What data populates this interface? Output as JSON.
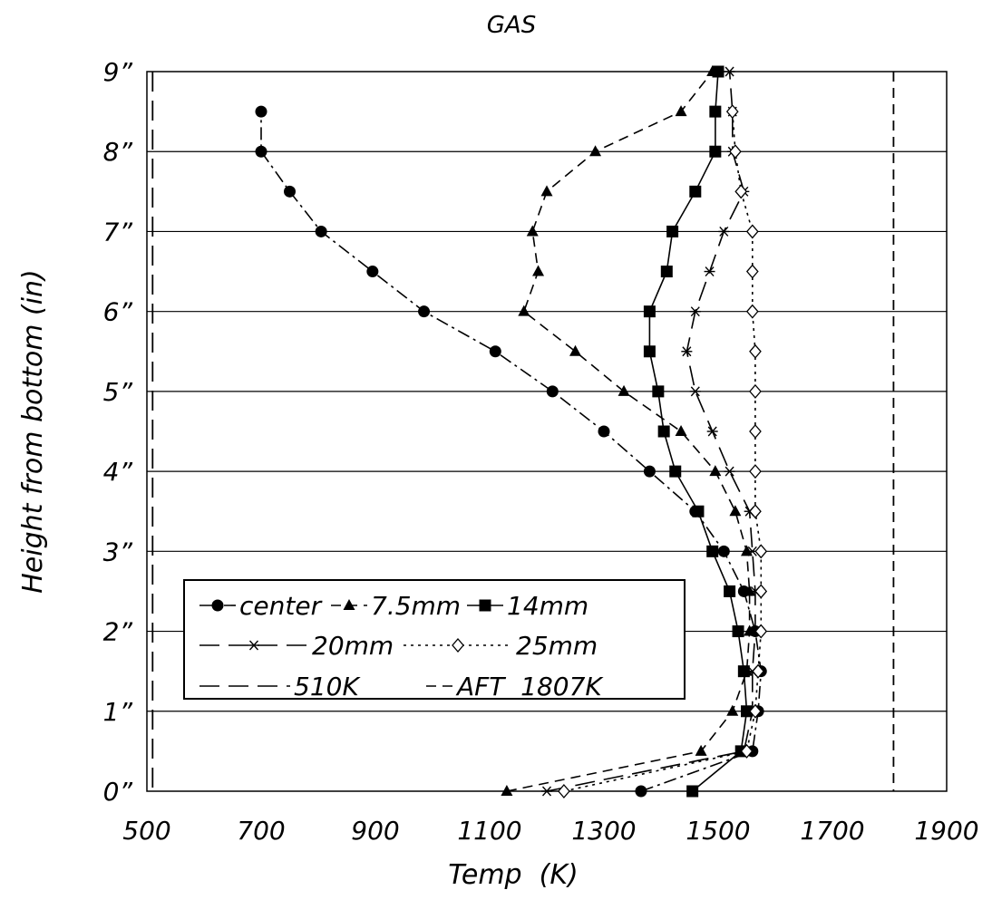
{
  "chart_data": {
    "type": "line",
    "title": "GAS",
    "xlabel": "Temp  (K)",
    "ylabel": "Height from bottom (in)",
    "xlim": [
      500,
      1900
    ],
    "ylim": [
      0,
      9
    ],
    "xticks": [
      500,
      700,
      900,
      1100,
      1300,
      1500,
      1700,
      1900
    ],
    "xtick_labels": [
      "500",
      "700",
      "900",
      "1100",
      "1300",
      "1500",
      "1700",
      "1900"
    ],
    "yticks": [
      0,
      1,
      2,
      3,
      4,
      5,
      6,
      7,
      8,
      9
    ],
    "ytick_labels": [
      "0”",
      "1”",
      "2”",
      "3”",
      "4”",
      "5”",
      "6”",
      "7”",
      "8”",
      "9”"
    ],
    "grid": "horizontal",
    "legend_placement": "lower-left",
    "series": [
      {
        "name": "center",
        "marker": "circle",
        "line": "dashdot",
        "points": [
          [
            1365,
            0
          ],
          [
            1560,
            0.5
          ],
          [
            1570,
            1
          ],
          [
            1575,
            1.5
          ],
          [
            1565,
            2
          ],
          [
            1545,
            2.5
          ],
          [
            1510,
            3
          ],
          [
            1460,
            3.5
          ],
          [
            1380,
            4
          ],
          [
            1300,
            4.5
          ],
          [
            1210,
            5
          ],
          [
            1110,
            5.5
          ],
          [
            985,
            6
          ],
          [
            895,
            6.5
          ],
          [
            805,
            7
          ],
          [
            750,
            7.5
          ],
          [
            700,
            8
          ],
          [
            700,
            8.5
          ]
        ]
      },
      {
        "name": "7.5mm",
        "marker": "triangle",
        "line": "dashed",
        "points": [
          [
            1130,
            0
          ],
          [
            1470,
            0.5
          ],
          [
            1525,
            1
          ],
          [
            1550,
            1.5
          ],
          [
            1555,
            2
          ],
          [
            1555,
            2.5
          ],
          [
            1550,
            3
          ],
          [
            1530,
            3.5
          ],
          [
            1495,
            4
          ],
          [
            1435,
            4.5
          ],
          [
            1335,
            5
          ],
          [
            1250,
            5.5
          ],
          [
            1160,
            6
          ],
          [
            1185,
            6.5
          ],
          [
            1175,
            7
          ],
          [
            1200,
            7.5
          ],
          [
            1285,
            8
          ],
          [
            1435,
            8.5
          ],
          [
            1490,
            9
          ]
        ]
      },
      {
        "name": "14mm",
        "marker": "square",
        "line": "solid",
        "points": [
          [
            1455,
            0
          ],
          [
            1540,
            0.5
          ],
          [
            1550,
            1
          ],
          [
            1545,
            1.5
          ],
          [
            1535,
            2
          ],
          [
            1520,
            2.5
          ],
          [
            1490,
            3
          ],
          [
            1465,
            3.5
          ],
          [
            1425,
            4
          ],
          [
            1405,
            4.5
          ],
          [
            1395,
            5
          ],
          [
            1380,
            5.5
          ],
          [
            1380,
            6
          ],
          [
            1410,
            6.5
          ],
          [
            1420,
            7
          ],
          [
            1460,
            7.5
          ],
          [
            1495,
            8
          ],
          [
            1495,
            8.5
          ],
          [
            1500,
            9
          ]
        ]
      },
      {
        "name": "20mm",
        "marker": "asterisk",
        "line": "longdash",
        "points": [
          [
            1200,
            0
          ],
          [
            1545,
            0.5
          ],
          [
            1560,
            1
          ],
          [
            1560,
            1.5
          ],
          [
            1565,
            2
          ],
          [
            1565,
            2.5
          ],
          [
            1560,
            3
          ],
          [
            1555,
            3.5
          ],
          [
            1520,
            4
          ],
          [
            1490,
            4.5
          ],
          [
            1460,
            5
          ],
          [
            1445,
            5.5
          ],
          [
            1460,
            6
          ],
          [
            1485,
            6.5
          ],
          [
            1510,
            7
          ],
          [
            1545,
            7.5
          ],
          [
            1525,
            8
          ],
          [
            1525,
            8.5
          ],
          [
            1520,
            9
          ]
        ]
      },
      {
        "name": "25mm",
        "marker": "diamond",
        "line": "dotted",
        "points": [
          [
            1230,
            0
          ],
          [
            1550,
            0.5
          ],
          [
            1565,
            1
          ],
          [
            1570,
            1.5
          ],
          [
            1575,
            2
          ],
          [
            1575,
            2.5
          ],
          [
            1575,
            3
          ],
          [
            1565,
            3.5
          ],
          [
            1565,
            4
          ],
          [
            1565,
            4.5
          ],
          [
            1565,
            5
          ],
          [
            1565,
            5.5
          ],
          [
            1560,
            6
          ],
          [
            1560,
            6.5
          ],
          [
            1560,
            7
          ],
          [
            1540,
            7.5
          ],
          [
            1530,
            8
          ],
          [
            1525,
            8.5
          ]
        ]
      },
      {
        "name": "510K",
        "marker": "none",
        "line": "longdash",
        "vertical_x": 510
      },
      {
        "name": "AFT  1807K",
        "marker": "none",
        "line": "dashed",
        "vertical_x": 1807
      }
    ]
  }
}
